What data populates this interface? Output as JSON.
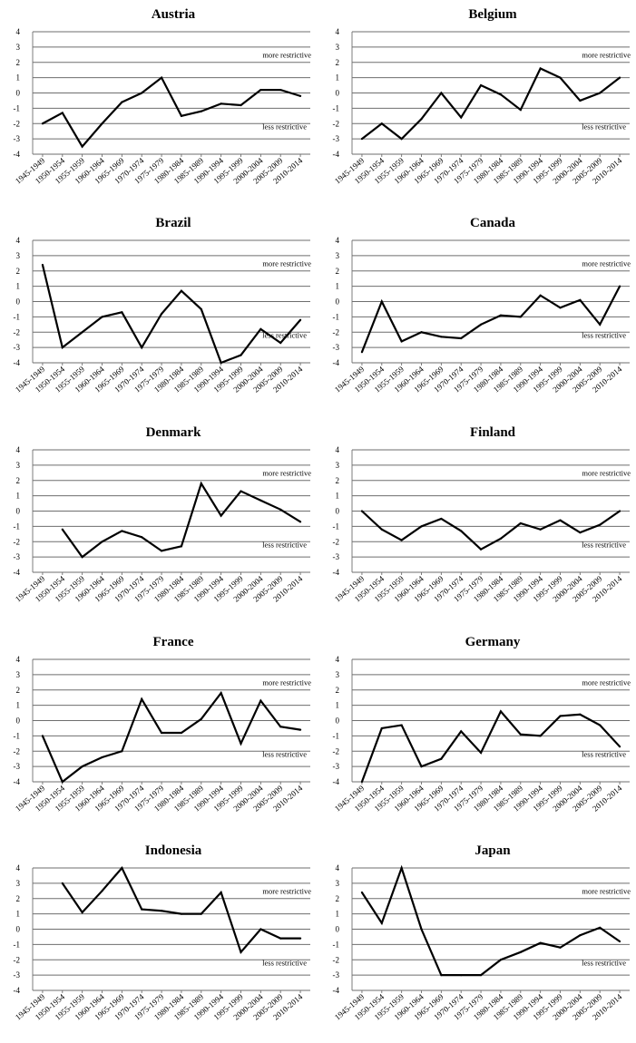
{
  "colors": {
    "line": "#000000",
    "grid": "#6e6e6e",
    "background": "#ffffff"
  },
  "chart_data": [
    {
      "type": "line",
      "title": "Austria",
      "categories": [
        "1945-1949",
        "1950-1954",
        "1955-1959",
        "1960-1964",
        "1965-1969",
        "1970-1974",
        "1975-1979",
        "1980-1984",
        "1985-1989",
        "1990-1994",
        "1995-1999",
        "2000-2004",
        "2005-2009",
        "2010-2014"
      ],
      "values": [
        -2.0,
        -1.3,
        -3.5,
        -2.0,
        -0.6,
        0.0,
        1.0,
        -1.5,
        -1.2,
        -0.7,
        -0.8,
        0.2,
        0.2,
        -0.2
      ],
      "ylim": [
        -4,
        4
      ],
      "annotations": [
        "more restrictive",
        "less restrictive"
      ]
    },
    {
      "type": "line",
      "title": "Belgium",
      "categories": [
        "1945-1949",
        "1950-1954",
        "1955-1959",
        "1960-1964",
        "1965-1969",
        "1970-1974",
        "1975-1979",
        "1980-1984",
        "1985-1989",
        "1990-1994",
        "1995-1999",
        "2000-2004",
        "2005-2009",
        "2010-2014"
      ],
      "values": [
        -3.0,
        -2.0,
        -3.0,
        -1.7,
        0.0,
        -1.6,
        0.5,
        -0.1,
        -1.1,
        1.6,
        1.0,
        -0.5,
        0.0,
        1.0
      ],
      "ylim": [
        -4,
        4
      ],
      "annotations": [
        "more restrictive",
        "less restrictive"
      ]
    },
    {
      "type": "line",
      "title": "Brazil",
      "categories": [
        "1945-1949",
        "1950-1954",
        "1955-1959",
        "1960-1964",
        "1965-1969",
        "1970-1974",
        "1975-1979",
        "1980-1984",
        "1985-1989",
        "1990-1994",
        "1995-1999",
        "2000-2004",
        "2005-2009",
        "2010-2014"
      ],
      "values": [
        2.4,
        -3.0,
        -2.0,
        -1.0,
        -0.7,
        -3.0,
        -0.8,
        0.7,
        -0.5,
        -4.0,
        -3.5,
        -1.8,
        -2.7,
        -1.2
      ],
      "ylim": [
        -4,
        4
      ],
      "annotations": [
        "more restrictive",
        "less restrictive"
      ]
    },
    {
      "type": "line",
      "title": "Canada",
      "categories": [
        "1945-1949",
        "1950-1954",
        "1955-1959",
        "1960-1964",
        "1965-1969",
        "1970-1974",
        "1975-1979",
        "1980-1984",
        "1985-1989",
        "1990-1994",
        "1995-1999",
        "2000-2004",
        "2005-2009",
        "2010-2014"
      ],
      "values": [
        -3.3,
        0.0,
        -2.6,
        -2.0,
        -2.3,
        -2.4,
        -1.5,
        -0.9,
        -1.0,
        0.4,
        -0.4,
        0.1,
        -1.5,
        1.0
      ],
      "ylim": [
        -4,
        4
      ],
      "annotations": [
        "more restrictive",
        "less restrictive"
      ]
    },
    {
      "type": "line",
      "title": "Denmark",
      "categories": [
        "1945-1949",
        "1950-1954",
        "1955-1959",
        "1960-1964",
        "1965-1969",
        "1970-1974",
        "1975-1979",
        "1980-1984",
        "1985-1989",
        "1990-1994",
        "1995-1999",
        "2000-2004",
        "2005-2009",
        "2010-2014"
      ],
      "values": [
        null,
        -1.2,
        -3.0,
        -2.0,
        -1.3,
        -1.7,
        -2.6,
        -2.3,
        1.8,
        -0.3,
        1.3,
        0.7,
        0.1,
        -0.7
      ],
      "ylim": [
        -4,
        4
      ],
      "annotations": [
        "more restrictive",
        "less restrictive"
      ]
    },
    {
      "type": "line",
      "title": "Finland",
      "categories": [
        "1945-1949",
        "1950-1954",
        "1955-1959",
        "1960-1964",
        "1965-1969",
        "1970-1974",
        "1975-1979",
        "1980-1984",
        "1985-1989",
        "1990-1994",
        "1995-1999",
        "2000-2004",
        "2005-2009",
        "2010-2014"
      ],
      "values": [
        0.0,
        -1.2,
        -1.9,
        -1.0,
        -0.5,
        -1.3,
        -2.5,
        -1.8,
        -0.8,
        -1.2,
        -0.6,
        -1.4,
        -0.9,
        0.0
      ],
      "ylim": [
        -4,
        4
      ],
      "annotations": [
        "more restrictive",
        "less restrictive"
      ]
    },
    {
      "type": "line",
      "title": "France",
      "categories": [
        "1945-1949",
        "1950-1954",
        "1955-1959",
        "1960-1964",
        "1965-1969",
        "1970-1974",
        "1975-1979",
        "1980-1984",
        "1985-1989",
        "1990-1994",
        "1995-1999",
        "2000-2004",
        "2005-2009",
        "2010-2014"
      ],
      "values": [
        -1.0,
        -4.0,
        -3.0,
        -2.4,
        -2.0,
        1.4,
        -0.8,
        -0.8,
        0.1,
        1.8,
        -1.5,
        1.3,
        -0.4,
        -0.6
      ],
      "ylim": [
        -4,
        4
      ],
      "annotations": [
        "more restrictive",
        "less restrictive"
      ]
    },
    {
      "type": "line",
      "title": "Germany",
      "categories": [
        "1945-1949",
        "1950-1954",
        "1955-1959",
        "1960-1964",
        "1965-1969",
        "1970-1974",
        "1975-1979",
        "1980-1984",
        "1985-1989",
        "1990-1994",
        "1995-1999",
        "2000-2004",
        "2005-2009",
        "2010-2014"
      ],
      "values": [
        -4.0,
        -0.5,
        -0.3,
        -3.0,
        -2.5,
        -0.7,
        -2.1,
        0.6,
        -0.9,
        -1.0,
        0.3,
        0.4,
        -0.3,
        -1.7
      ],
      "ylim": [
        -4,
        4
      ],
      "annotations": [
        "more restrictive",
        "less restrictive"
      ]
    },
    {
      "type": "line",
      "title": "Indonesia",
      "categories": [
        "1945-1949",
        "1950-1954",
        "1955-1959",
        "1960-1964",
        "1965-1969",
        "1970-1974",
        "1975-1979",
        "1980-1984",
        "1985-1989",
        "1990-1994",
        "1995-1999",
        "2000-2004",
        "2005-2009",
        "2010-2014"
      ],
      "values": [
        null,
        3.0,
        1.1,
        2.5,
        4.0,
        1.3,
        1.2,
        1.0,
        1.0,
        2.4,
        -1.5,
        0.0,
        -0.6,
        -0.6
      ],
      "ylim": [
        -4,
        4
      ],
      "annotations": [
        "more restrictive",
        "less restrictive"
      ]
    },
    {
      "type": "line",
      "title": "Japan",
      "categories": [
        "1945-1949",
        "1950-1954",
        "1955-1959",
        "1960-1964",
        "1965-1969",
        "1970-1974",
        "1975-1979",
        "1980-1984",
        "1985-1989",
        "1990-1994",
        "1995-1999",
        "2000-2004",
        "2005-2009",
        "2010-2014"
      ],
      "values": [
        2.4,
        0.4,
        4.0,
        0.0,
        -3.0,
        -3.0,
        -3.0,
        -2.0,
        -1.5,
        -0.9,
        -1.2,
        -0.4,
        0.1,
        -0.8
      ],
      "ylim": [
        -4,
        4
      ],
      "annotations": [
        "more restrictive",
        "less restrictive"
      ]
    }
  ]
}
